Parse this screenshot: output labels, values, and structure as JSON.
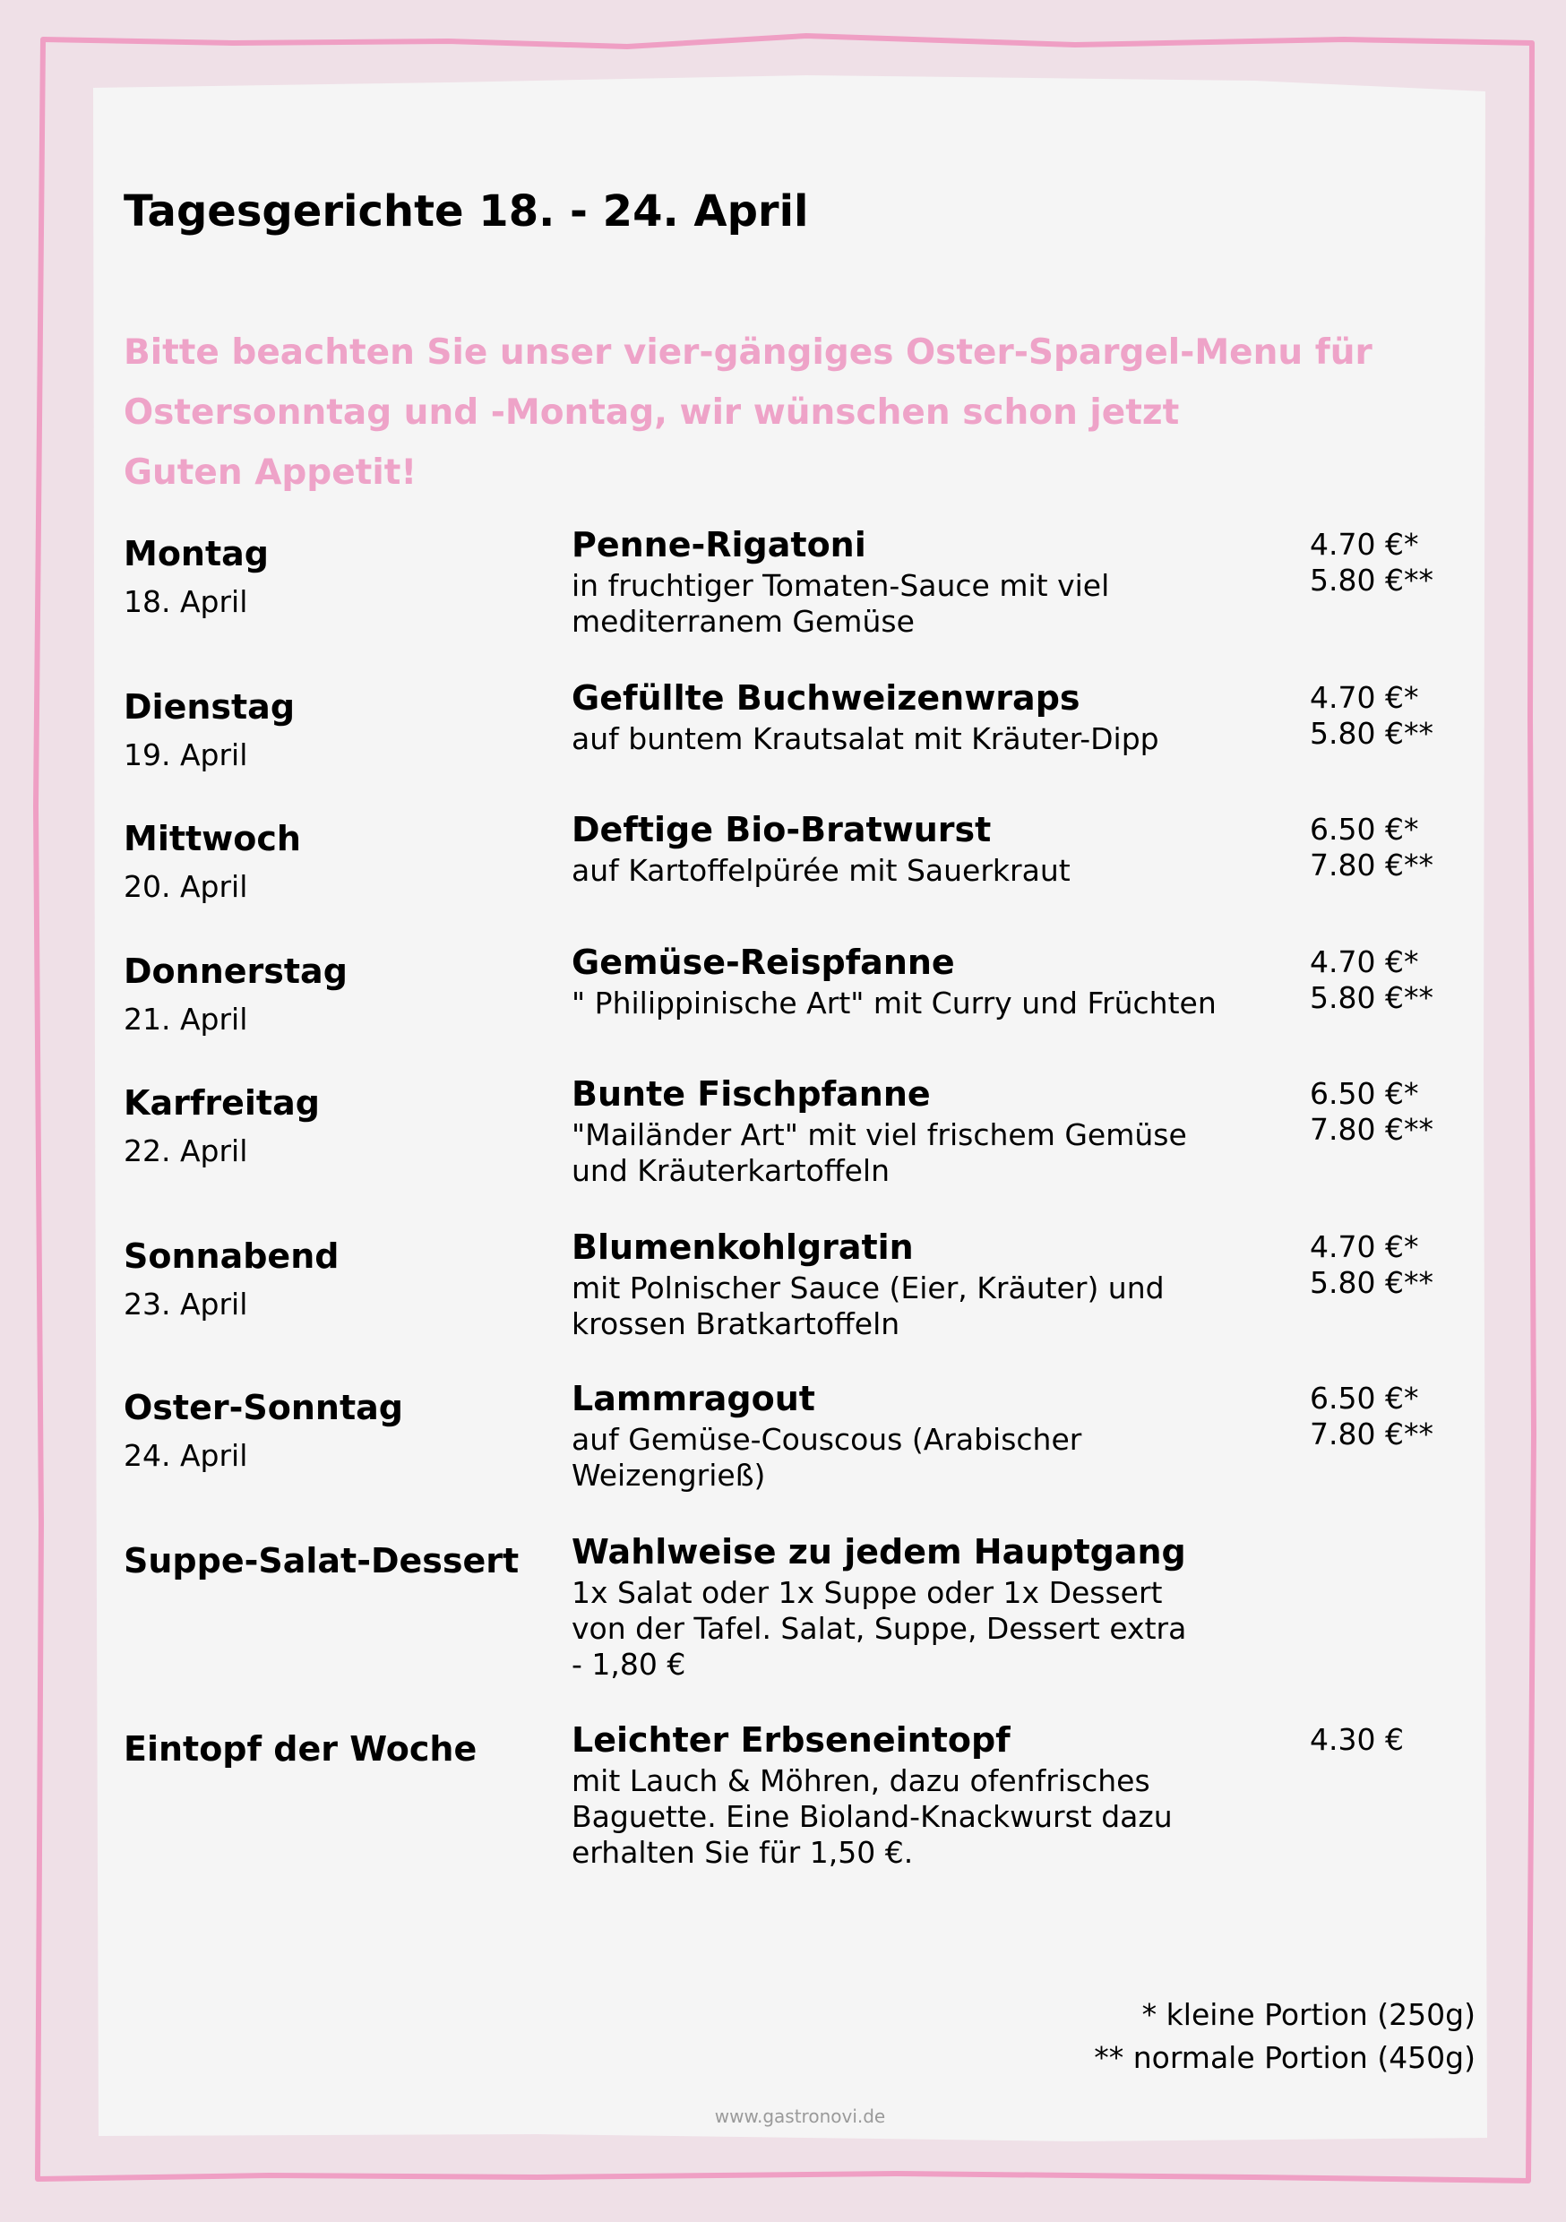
{
  "colors": {
    "background": "#efe0e7",
    "paper": "#f5f5f5",
    "border": "#ef9fc4",
    "accent_text": "#eea3c8"
  },
  "title": "Tagesgerichte 18. - 24. April",
  "intro": {
    "lines": [
      "Bitte beachten Sie unser vier-gängiges Oster-Spargel-Menu für",
      "Ostersonntag und -Montag, wir wünschen schon jetzt",
      "Guten Appetit!"
    ]
  },
  "rows": [
    {
      "day": "Montag",
      "date": "18. April",
      "dish": "Penne-Rigatoni",
      "desc": [
        "in fruchtiger Tomaten-Sauce mit viel",
        "mediterranem Gemüse"
      ],
      "prices": [
        "4.70 €*",
        "5.80 €**"
      ]
    },
    {
      "day": "Dienstag",
      "date": "19. April",
      "dish": "Gefüllte Buchweizenwraps",
      "desc": [
        "auf buntem Krautsalat mit Kräuter-Dipp"
      ],
      "prices": [
        "4.70 €*",
        "5.80 €**"
      ]
    },
    {
      "day": "Mittwoch",
      "date": "20. April",
      "dish": "Deftige Bio-Bratwurst",
      "desc": [
        "auf Kartoffelpürée mit Sauerkraut"
      ],
      "prices": [
        "6.50 €*",
        "7.80 €**"
      ]
    },
    {
      "day": "Donnerstag",
      "date": "21. April",
      "dish": "Gemüse-Reispfanne",
      "desc": [
        "\" Philippinische Art\" mit Curry und Früchten"
      ],
      "prices": [
        "4.70 €*",
        "5.80 €**"
      ]
    },
    {
      "day": "Karfreitag",
      "date": "22. April",
      "dish": "Bunte Fischpfanne",
      "desc": [
        "\"Mailänder Art\" mit viel frischem Gemüse",
        "und Kräuterkartoffeln"
      ],
      "prices": [
        "6.50 €*",
        "7.80 €**"
      ]
    },
    {
      "day": "Sonnabend",
      "date": "23. April",
      "dish": "Blumenkohlgratin",
      "desc": [
        "mit Polnischer Sauce (Eier, Kräuter) und",
        "krossen Bratkartoffeln"
      ],
      "prices": [
        "4.70 €*",
        "5.80 €**"
      ]
    },
    {
      "day": "Oster-Sonntag",
      "date": "24. April",
      "dish": "Lammragout",
      "desc": [
        "auf Gemüse-Couscous (Arabischer",
        "Weizengrieß)"
      ],
      "prices": [
        "6.50 €*",
        "7.80 €**"
      ]
    },
    {
      "day": "Suppe-Salat-Dessert",
      "date": "",
      "dish": "Wahlweise zu jedem Hauptgang",
      "desc": [
        "1x Salat oder 1x Suppe oder 1x Dessert",
        "von der Tafel. Salat, Suppe, Dessert extra",
        "- 1,80 €"
      ],
      "prices": []
    },
    {
      "day": "Eintopf der Woche",
      "date": "",
      "dish": "Leichter Erbseneintopf",
      "desc": [
        "mit Lauch & Möhren, dazu ofenfrisches",
        "Baguette. Eine Bioland-Knackwurst dazu",
        "erhalten Sie für 1,50 €."
      ],
      "prices": [
        "4.30 €"
      ]
    }
  ],
  "footnotes": [
    "* kleine Portion (250g)",
    "** normale Portion (450g)"
  ],
  "website": "www.gastronovi.de"
}
